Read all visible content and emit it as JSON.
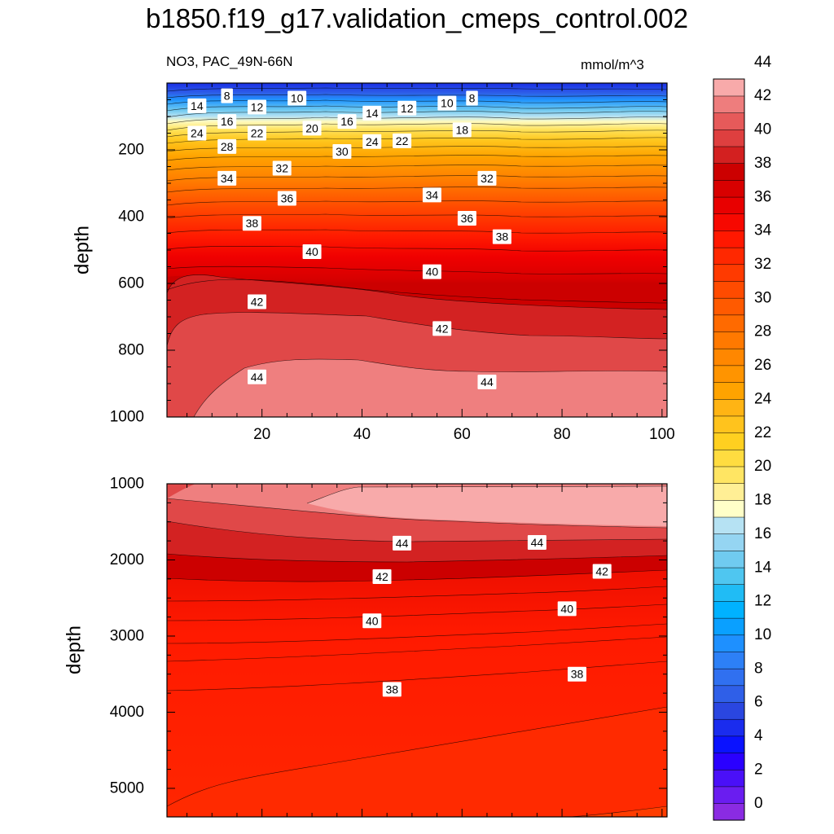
{
  "title": "b1850.f19_g17.validation_cmeps_control.002",
  "subtitle_left": "NO3, PAC_49N-66N",
  "subtitle_right": "mmol/m^3",
  "chart_data": [
    {
      "type": "contour",
      "panel": "upper",
      "title": "b1850.f19_g17.validation_cmeps_control.002",
      "variable": "NO3",
      "region": "PAC_49N-66N",
      "units": "mmol/m^3",
      "xlabel": "",
      "ylabel": "depth",
      "xlim": [
        1,
        101
      ],
      "ylim": [
        1000,
        0
      ],
      "x_ticks": [
        20,
        40,
        60,
        80,
        100
      ],
      "y_ticks": [
        200,
        400,
        600,
        800,
        1000
      ],
      "contour_labels": [
        {
          "text": "8",
          "x": 13,
          "y": 38
        },
        {
          "text": "10",
          "x": 27,
          "y": 45
        },
        {
          "text": "14",
          "x": 7,
          "y": 68
        },
        {
          "text": "12",
          "x": 19,
          "y": 72
        },
        {
          "text": "16",
          "x": 13,
          "y": 115
        },
        {
          "text": "10",
          "x": 57,
          "y": 60
        },
        {
          "text": "8",
          "x": 62,
          "y": 45
        },
        {
          "text": "14",
          "x": 42,
          "y": 90
        },
        {
          "text": "12",
          "x": 49,
          "y": 75
        },
        {
          "text": "24",
          "x": 7,
          "y": 150
        },
        {
          "text": "22",
          "x": 19,
          "y": 150
        },
        {
          "text": "20",
          "x": 30,
          "y": 135
        },
        {
          "text": "16",
          "x": 37,
          "y": 115
        },
        {
          "text": "18",
          "x": 60,
          "y": 140
        },
        {
          "text": "28",
          "x": 13,
          "y": 190
        },
        {
          "text": "24",
          "x": 42,
          "y": 175
        },
        {
          "text": "22",
          "x": 48,
          "y": 173
        },
        {
          "text": "30",
          "x": 36,
          "y": 205
        },
        {
          "text": "32",
          "x": 24,
          "y": 255
        },
        {
          "text": "34",
          "x": 13,
          "y": 285
        },
        {
          "text": "32",
          "x": 65,
          "y": 285
        },
        {
          "text": "36",
          "x": 25,
          "y": 345
        },
        {
          "text": "34",
          "x": 54,
          "y": 335
        },
        {
          "text": "38",
          "x": 18,
          "y": 420
        },
        {
          "text": "36",
          "x": 61,
          "y": 405
        },
        {
          "text": "38",
          "x": 68,
          "y": 460
        },
        {
          "text": "40",
          "x": 30,
          "y": 505
        },
        {
          "text": "40",
          "x": 54,
          "y": 565
        },
        {
          "text": "42",
          "x": 19,
          "y": 655
        },
        {
          "text": "42",
          "x": 56,
          "y": 735
        },
        {
          "text": "44",
          "x": 19,
          "y": 880
        },
        {
          "text": "44",
          "x": 65,
          "y": 895
        }
      ]
    },
    {
      "type": "contour",
      "panel": "lower",
      "xlabel": "",
      "ylabel": "depth",
      "xlim": [
        1,
        101
      ],
      "ylim": [
        5375,
        1000
      ],
      "y_ticks": [
        1000,
        2000,
        3000,
        4000,
        5000
      ],
      "contour_labels": [
        {
          "text": "44",
          "x": 48,
          "y": 1780
        },
        {
          "text": "44",
          "x": 75,
          "y": 1770
        },
        {
          "text": "42",
          "x": 44,
          "y": 2220
        },
        {
          "text": "42",
          "x": 88,
          "y": 2150
        },
        {
          "text": "40",
          "x": 42,
          "y": 2800
        },
        {
          "text": "40",
          "x": 81,
          "y": 2640
        },
        {
          "text": "38",
          "x": 46,
          "y": 3700
        },
        {
          "text": "38",
          "x": 83,
          "y": 3500
        }
      ]
    }
  ],
  "colorbar": {
    "labels": [
      "0",
      "2",
      "4",
      "6",
      "8",
      "10",
      "12",
      "14",
      "16",
      "18",
      "20",
      "22",
      "24",
      "26",
      "28",
      "30",
      "32",
      "34",
      "36",
      "38",
      "40",
      "42",
      "44"
    ],
    "colors": [
      "#8a2be2",
      "#6a1df0",
      "#4a10f8",
      "#2a00ff",
      "#0a12ff",
      "#1a2cee",
      "#2a46e0",
      "#2f5fe8",
      "#3070f0",
      "#2d80f6",
      "#1e90ff",
      "#0aa0ff",
      "#00b2ff",
      "#20bcf5",
      "#4fc6f0",
      "#70cbf0",
      "#95d5f2",
      "#b6e2f3",
      "#ffffc8",
      "#ffef95",
      "#ffe563",
      "#ffdc40",
      "#ffd020",
      "#ffc31d",
      "#ffb414",
      "#ffa300",
      "#ff9400",
      "#ff8700",
      "#ff7900",
      "#ff6a00",
      "#ff5a00",
      "#ff4b00",
      "#ff3a00",
      "#ff2800",
      "#ff1800",
      "#f70800",
      "#e80000",
      "#d80000",
      "#cc0000",
      "#d32020",
      "#de3f3f",
      "#e65a5a",
      "#ee7d7d",
      "#f8aaaa"
    ]
  }
}
